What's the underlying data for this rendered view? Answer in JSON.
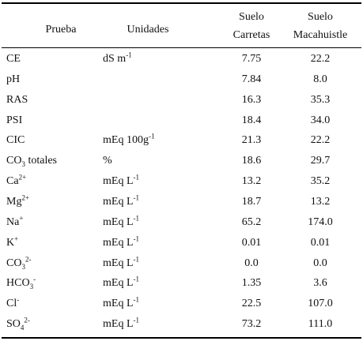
{
  "table": {
    "header": [
      "Prueba",
      "Unidades",
      [
        "Suelo",
        "Carretas"
      ],
      [
        "Suelo",
        "Macahuistle"
      ]
    ],
    "rows": [
      [
        "CE",
        {
          "base": "dS m",
          "sup": "-1"
        },
        "7.75",
        "22.2"
      ],
      [
        "pH",
        null,
        "7.84",
        "8.0"
      ],
      [
        "RAS",
        null,
        "16.3",
        "35.3"
      ],
      [
        "PSI",
        null,
        "18.4",
        "34.0"
      ],
      [
        "CIC",
        {
          "base": "mEq 100g",
          "sup": "-1"
        },
        "21.3",
        "22.2"
      ],
      [
        {
          "base": "CO",
          "sub": "3",
          "after": " totales"
        },
        "%",
        "18.6",
        "29.7"
      ],
      [
        {
          "base": "Ca",
          "sup": "2+"
        },
        {
          "base": "mEq L",
          "sup": "-1"
        },
        "13.2",
        "35.2"
      ],
      [
        {
          "base": "Mg",
          "sup": "2+"
        },
        {
          "base": "mEq L",
          "sup": "-1"
        },
        "18.7",
        "13.2"
      ],
      [
        {
          "base": "Na",
          "sup": "+"
        },
        {
          "base": "mEq L",
          "sup": "-1"
        },
        "65.2",
        "174.0"
      ],
      [
        {
          "base": "K",
          "sup": "+"
        },
        {
          "base": "mEq L",
          "sup": "-1"
        },
        "0.01",
        "0.01"
      ],
      [
        {
          "base": "CO",
          "sub": "3",
          "sup": "2-"
        },
        {
          "base": "mEq L",
          "sup": "-1"
        },
        "0.0",
        "0.0"
      ],
      [
        {
          "base": "HCO",
          "sub": "3",
          "sup": "-"
        },
        {
          "base": "mEq L",
          "sup": "-1"
        },
        "1.35",
        "3.6"
      ],
      [
        {
          "base": "Cl",
          "sup": "-"
        },
        {
          "base": "mEq L",
          "sup": "-1"
        },
        "22.5",
        "107.0"
      ],
      [
        {
          "base": "SO",
          "sub": "4",
          "sup": "2-"
        },
        {
          "base": "mEq L",
          "sup": "-1"
        },
        "73.2",
        "111.0"
      ]
    ]
  }
}
